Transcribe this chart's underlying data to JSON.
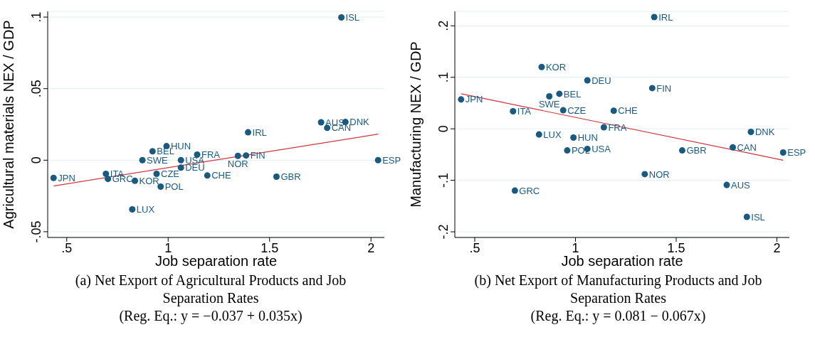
{
  "chart_data": [
    {
      "type": "scatter",
      "title": "(a) Net Export of Agricultural Products and Job Separation Rates",
      "subtitle": "(Reg. Eq.: y = −0.037 + 0.035x)",
      "xlabel": "Job separation rate",
      "ylabel": "Agricultural materials NEX / GDP",
      "xlim": [
        0.406,
        2.066
      ],
      "xticks": [
        {
          "value": 0.5,
          "label": ".5"
        },
        1,
        1.5,
        2
      ],
      "ylim": [
        -0.054,
        0.104
      ],
      "yticks": [
        {
          "value": -0.05,
          "label": "-.05"
        },
        0,
        {
          "value": 0.05,
          "label": ".05"
        },
        {
          "value": 0.1,
          "label": ".1"
        }
      ],
      "grid": "y",
      "series": [
        {
          "color": "#1a5a80",
          "marker": "circle",
          "x": [
            0.435,
            0.693,
            0.703,
            0.836,
            0.823,
            0.963,
            0.873,
            0.923,
            0.992,
            0.943,
            1.063,
            1.063,
            1.143,
            1.193,
            1.344,
            1.384,
            1.394,
            1.534,
            1.754,
            1.784,
            1.874,
            1.854,
            2.035
          ],
          "values": [
            -0.0124,
            -0.0095,
            -0.0131,
            -0.0144,
            -0.0344,
            -0.0185,
            0,
            0.0062,
            0.0098,
            -0.0095,
            0,
            -0.0052,
            0.0039,
            -0.0107,
            0.003,
            0.0033,
            0.0195,
            -0.0115,
            0.0265,
            0.0226,
            0.0267,
            0.0998,
            0
          ]
        },
        {
          "type": "line",
          "color": "#d0343c",
          "x": [
            0.435,
            2.035
          ],
          "values": [
            -0.018,
            0.0182
          ]
        }
      ],
      "annotations": [
        {
          "text": "JPN",
          "x": 0.435,
          "y": -0.0124
        },
        {
          "text": "ITA",
          "x": 0.693,
          "y": -0.0095
        },
        {
          "text": "GRC",
          "x": 0.703,
          "y": -0.0131
        },
        {
          "text": "KOR",
          "x": 0.836,
          "y": -0.0144
        },
        {
          "text": "LUX",
          "x": 0.823,
          "y": -0.0344
        },
        {
          "text": "POL",
          "x": 0.963,
          "y": -0.0185
        },
        {
          "text": "SWE",
          "x": 0.873,
          "y": 0
        },
        {
          "text": "BEL",
          "x": 0.923,
          "y": 0.0062
        },
        {
          "text": "HUN",
          "x": 0.992,
          "y": 0.0098
        },
        {
          "text": "CZE",
          "x": 0.943,
          "y": -0.0095
        },
        {
          "text": "USA",
          "x": 1.063,
          "y": 0
        },
        {
          "text": "DEU",
          "x": 1.063,
          "y": -0.0052
        },
        {
          "text": "FRA",
          "x": 1.143,
          "y": 0.0039
        },
        {
          "text": "CHE",
          "x": 1.193,
          "y": -0.0107
        },
        {
          "text": "NOR",
          "x": 1.344,
          "y": 0.003
        },
        {
          "text": "FIN",
          "x": 1.384,
          "y": 0.0033
        },
        {
          "text": "IRL",
          "x": 1.394,
          "y": 0.0195
        },
        {
          "text": "GBR",
          "x": 1.534,
          "y": -0.0115
        },
        {
          "text": "AUS",
          "x": 1.754,
          "y": 0.0265
        },
        {
          "text": "CAN",
          "x": 1.784,
          "y": 0.0226
        },
        {
          "text": "DNK",
          "x": 1.874,
          "y": 0.0267
        },
        {
          "text": "ISL",
          "x": 1.854,
          "y": 0.0998
        },
        {
          "text": "ESP",
          "x": 2.035,
          "y": 0
        }
      ]
    },
    {
      "type": "scatter",
      "title": "(b) Net Export of Manufacturing Products and Job Separation Rates",
      "subtitle": "(Reg. Eq.: y = 0.081 − 0.067x)",
      "xlabel": "Job separation rate",
      "ylabel": "Manufacturing NEX / GDP",
      "xlim": [
        0.401,
        2.062
      ],
      "xticks": [
        {
          "value": 0.5,
          "label": ".5"
        },
        1,
        1.5,
        2
      ],
      "ylim": [
        -0.211,
        0.228
      ],
      "yticks": [
        {
          "value": -0.2,
          "label": "-.2"
        },
        {
          "value": -0.1,
          "label": "-.1"
        },
        0,
        {
          "value": 0.1,
          "label": ".1"
        },
        {
          "value": 0.2,
          "label": ".2"
        }
      ],
      "grid": "y",
      "series": [
        {
          "color": "#1a5a80",
          "marker": "circle",
          "x": [
            1.391,
            0.832,
            1.059,
            1.381,
            0.92,
            0.87,
            0.432,
            0.69,
            0.939,
            1.19,
            1.141,
            0.819,
            0.99,
            0.959,
            1.059,
            1.53,
            1.781,
            1.871,
            2.031,
            1.344,
            1.751,
            0.699,
            1.851
          ],
          "values": [
            0.217,
            0.12,
            0.094,
            0.079,
            0.068,
            0.063,
            0.057,
            0.034,
            0.036,
            0.035,
            0.003,
            -0.011,
            -0.017,
            -0.042,
            -0.039,
            -0.042,
            -0.036,
            -0.006,
            -0.046,
            -0.088,
            -0.109,
            -0.12,
            -0.171
          ]
        },
        {
          "type": "line",
          "color": "#d0343c",
          "x": [
            0.432,
            2.031
          ],
          "values": [
            0.068,
            -0.061
          ]
        }
      ],
      "annotations": [
        {
          "text": "IRL",
          "x": 1.391,
          "y": 0.217
        },
        {
          "text": "KOR",
          "x": 0.832,
          "y": 0.12
        },
        {
          "text": "DEU",
          "x": 1.059,
          "y": 0.094
        },
        {
          "text": "FIN",
          "x": 1.381,
          "y": 0.079
        },
        {
          "text": "BEL",
          "x": 0.92,
          "y": 0.068
        },
        {
          "text": "SWE",
          "x": 0.87,
          "y": 0.063
        },
        {
          "text": "JPN",
          "x": 0.432,
          "y": 0.057
        },
        {
          "text": "ITA",
          "x": 0.69,
          "y": 0.034
        },
        {
          "text": "CZE",
          "x": 0.939,
          "y": 0.036
        },
        {
          "text": "CHE",
          "x": 1.19,
          "y": 0.035
        },
        {
          "text": "FRA",
          "x": 1.141,
          "y": 0.003
        },
        {
          "text": "LUX",
          "x": 0.819,
          "y": -0.011
        },
        {
          "text": "HUN",
          "x": 0.99,
          "y": -0.017
        },
        {
          "text": "POL",
          "x": 0.959,
          "y": -0.042
        },
        {
          "text": "USA",
          "x": 1.059,
          "y": -0.039
        },
        {
          "text": "GBR",
          "x": 1.53,
          "y": -0.042
        },
        {
          "text": "CAN",
          "x": 1.781,
          "y": -0.036
        },
        {
          "text": "DNK",
          "x": 1.871,
          "y": -0.006
        },
        {
          "text": "ESP",
          "x": 2.031,
          "y": -0.046
        },
        {
          "text": "NOR",
          "x": 1.344,
          "y": -0.088
        },
        {
          "text": "AUS",
          "x": 1.751,
          "y": -0.109
        },
        {
          "text": "GRC",
          "x": 0.699,
          "y": -0.12
        },
        {
          "text": "ISL",
          "x": 1.851,
          "y": -0.171
        }
      ]
    }
  ]
}
